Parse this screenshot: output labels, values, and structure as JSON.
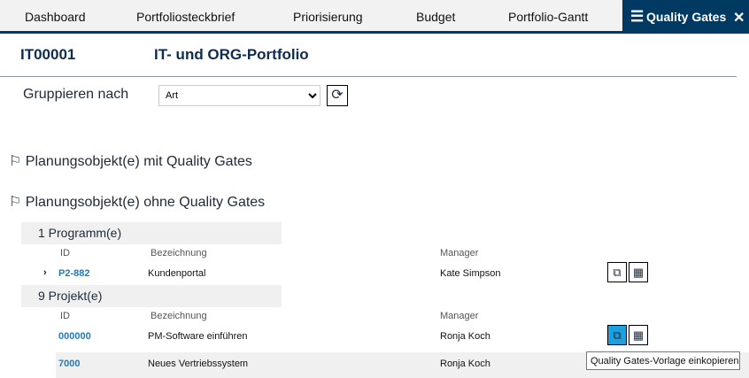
{
  "nav": {
    "tabs": [
      "Dashboard",
      "Portfoliosteckbrief",
      "Priorisierung",
      "Budget",
      "Portfolio-Gantt"
    ],
    "active": "Quality Gates",
    "menu_icon": "hamburger-icon",
    "close_icon": "close-icon"
  },
  "header": {
    "id": "IT00001",
    "title": "IT- und ORG-Portfolio"
  },
  "group": {
    "label": "Gruppieren nach",
    "value": "Art"
  },
  "sections": {
    "with": "Planungsobjekt(e) mit Quality Gates",
    "without": "Planungsobjekt(e) ohne Quality Gates"
  },
  "columns": {
    "id": "ID",
    "name": "Bezeichnung",
    "manager": "Manager"
  },
  "programs": {
    "title": "1 Programm(e)",
    "rows": [
      {
        "id": "P2-882",
        "name": "Kundenportal",
        "manager": "Kate Simpson"
      }
    ]
  },
  "projects": {
    "title": "9 Projekt(e)",
    "rows": [
      {
        "id": "000000",
        "name": "PM-Software einführen",
        "manager": "Ronja Koch"
      },
      {
        "id": "7000",
        "name": "Neues Vertriebssystem",
        "manager": "Ronja Koch"
      }
    ]
  },
  "tooltip": "Quality Gates-Vorlage einkopieren",
  "colors": {
    "brand": "#003a63",
    "accent": "#1ca0e0",
    "link": "#1c7bc0"
  }
}
